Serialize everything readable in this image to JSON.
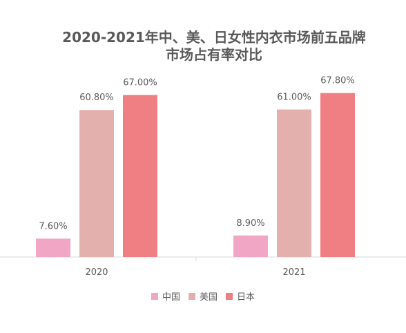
{
  "chart_data": {
    "type": "bar",
    "title": [
      "2020-2021年中、美、日女性内衣市场前五品牌",
      "市场占有率对比"
    ],
    "categories": [
      "2020",
      "2021"
    ],
    "series": [
      {
        "name": "中国",
        "values": [
          7.6,
          8.9
        ],
        "labels": [
          "7.60%",
          "8.90%"
        ],
        "color": "#f0a6c4"
      },
      {
        "name": "美国",
        "values": [
          60.8,
          61.0
        ],
        "labels": [
          "60.80%",
          "61.00%"
        ],
        "color": "#e4b0ae"
      },
      {
        "name": "日本",
        "values": [
          67.0,
          67.8
        ],
        "labels": [
          "67.00%",
          "67.80%"
        ],
        "color": "#ef7f83"
      }
    ],
    "ylim": [
      0,
      80
    ],
    "grid": false,
    "legend_position": "bottom"
  },
  "colors": {
    "text": "#595959",
    "axis": "#d9d9d9"
  }
}
